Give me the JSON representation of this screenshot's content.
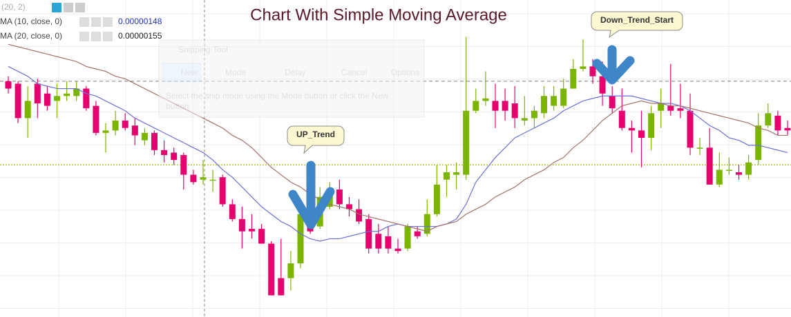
{
  "chart_data": {
    "type": "candlestick",
    "title": "Chart With Simple Moving Average",
    "indicator_header": "(20, 2)",
    "up_color": "#7cb500",
    "down_color": "#e6006e",
    "ylim": [
      8.12e-07,
      2.1e-06
    ],
    "hlines": [
      1.77e-06,
      1.43e-06
    ],
    "open": [
      1.77e-06,
      1.76e-06,
      1.62e-06,
      1.76e-06,
      1.72e-06,
      1.69e-06,
      1.71e-06,
      1.71e-06,
      1.74e-06,
      1.67e-06,
      1.56e-06,
      1.57e-06,
      1.61e-06,
      1.59e-06,
      1.53e-06,
      1.56e-06,
      1.49e-06,
      1.48e-06,
      1.47e-06,
      1.39e-06,
      1.37e-06,
      1.37e-06,
      1.38e-06,
      1.27e-06,
      1.21e-06,
      1.17e-06,
      1.17e-06,
      1.11e-06,
      9.7e-07,
      9.7e-07,
      1.03e-06,
      1.29e-06,
      1.18e-06,
      1.26e-06,
      1.33e-06,
      1.27e-06,
      1.25e-06,
      1.21e-06,
      1.15e-06,
      1.14e-06,
      1.09e-06,
      1.09e-06,
      1.16e-06,
      1.15e-06,
      1.23e-06,
      1.37e-06,
      1.39e-06,
      1.39e-06,
      1.65e-06,
      1.69e-06,
      1.69e-06,
      1.69e-06,
      1.68e-06,
      1.61e-06,
      1.62e-06,
      1.64e-06,
      1.67e-06,
      1.67e-06,
      1.74e-06,
      1.82e-06,
      1.83e-06,
      1.79e-06,
      1.71e-06,
      1.65e-06,
      1.58e-06,
      1.57e-06,
      1.54e-06,
      1.65e-06,
      1.67e-06,
      1.66e-06,
      1.65e-06,
      1.5e-06,
      1.5e-06,
      1.35e-06,
      1.41e-06,
      1.4e-06,
      1.39e-06,
      1.45e-06,
      1.59e-06,
      1.63e-06,
      1.58e-06
    ],
    "high": [
      1.79e-06,
      1.77e-06,
      1.75e-06,
      1.78e-06,
      1.75e-06,
      1.76e-06,
      1.77e-06,
      1.77e-06,
      1.75e-06,
      1.69e-06,
      1.6e-06,
      1.65e-06,
      1.64e-06,
      1.62e-06,
      1.58e-06,
      1.57e-06,
      1.53e-06,
      1.5e-06,
      1.48e-06,
      1.41e-06,
      1.45e-06,
      1.41e-06,
      1.39e-06,
      1.29e-06,
      1.26e-06,
      1.23e-06,
      1.19e-06,
      1.12e-06,
      1.13e-06,
      1.08e-06,
      1.27e-06,
      1.36e-06,
      1.34e-06,
      1.36e-06,
      1.37e-06,
      1.3e-06,
      1.29e-06,
      1.23e-06,
      1.19e-06,
      1.18e-06,
      1.13e-06,
      1.19e-06,
      1.18e-06,
      1.29e-06,
      1.43e-06,
      1.43e-06,
      1.44e-06,
      1.95e-06,
      1.74e-06,
      1.81e-06,
      1.76e-06,
      1.74e-06,
      1.75e-06,
      1.71e-06,
      1.67e-06,
      1.75e-06,
      1.75e-06,
      1.78e-06,
      1.86e-06,
      1.94e-06,
      1.86e-06,
      1.85e-06,
      1.75e-06,
      1.74e-06,
      1.61e-06,
      1.65e-06,
      1.67e-06,
      1.74e-06,
      1.84e-06,
      1.76e-06,
      1.72e-06,
      1.54e-06,
      1.58e-06,
      1.48e-06,
      1.46e-06,
      1.43e-06,
      1.47e-06,
      1.64e-06,
      1.68e-06,
      1.65e-06,
      1.61e-06
    ],
    "low": [
      1.72e-06,
      1.6e-06,
      1.54e-06,
      1.62e-06,
      1.65e-06,
      1.62e-06,
      1.69e-06,
      1.69e-06,
      1.65e-06,
      1.55e-06,
      1.48e-06,
      1.55e-06,
      1.57e-06,
      1.51e-06,
      1.51e-06,
      1.47e-06,
      1.44e-06,
      1.43e-06,
      1.33e-06,
      1.35e-06,
      1.35e-06,
      1.32e-06,
      1.26e-06,
      1.2e-06,
      1.09e-06,
      1.13e-06,
      1.11e-06,
      9e-07,
      9e-07,
      9.2e-07,
      1.01e-06,
      1.15e-06,
      1.17e-06,
      1.25e-06,
      1.25e-06,
      1.22e-06,
      1.19e-06,
      1.07e-06,
      1.07e-06,
      1.07e-06,
      1.07e-06,
      1.08e-06,
      1.13e-06,
      1.14e-06,
      1.22e-06,
      1.3e-06,
      1.33e-06,
      1.37e-06,
      1.64e-06,
      1.67e-06,
      1.58e-06,
      1.61e-06,
      1.58e-06,
      1.59e-06,
      1.58e-06,
      1.62e-06,
      1.65e-06,
      1.66e-06,
      1.74e-06,
      1.81e-06,
      1.76e-06,
      1.67e-06,
      1.64e-06,
      1.57e-06,
      1.48e-06,
      1.42e-06,
      1.49e-06,
      1.58e-06,
      1.63e-06,
      1.62e-06,
      1.47e-06,
      1.47e-06,
      1.35e-06,
      1.34e-06,
      1.39e-06,
      1.37e-06,
      1.37e-06,
      1.43e-06,
      1.58e-06,
      1.55e-06,
      1.55e-06
    ],
    "close": [
      1.74e-06,
      1.62e-06,
      1.69e-06,
      1.68e-06,
      1.67e-06,
      1.71e-06,
      1.72e-06,
      1.74e-06,
      1.66e-06,
      1.56e-06,
      1.57e-06,
      1.61e-06,
      1.58e-06,
      1.55e-06,
      1.56e-06,
      1.49e-06,
      1.47e-06,
      1.45e-06,
      1.39e-06,
      1.36e-06,
      1.38e-06,
      1.37e-06,
      1.27e-06,
      1.21e-06,
      1.16e-06,
      1.16e-06,
      1.11e-06,
      9e-07,
      9e-07,
      1.03e-06,
      1.23e-06,
      1.16e-06,
      1.3e-06,
      1.33e-06,
      1.27e-06,
      1.25e-06,
      1.2e-06,
      1.09e-06,
      1.09e-06,
      1.09e-06,
      1.08e-06,
      1.18e-06,
      1.14e-06,
      1.23e-06,
      1.35e-06,
      1.4e-06,
      1.4e-06,
      1.65e-06,
      1.69e-06,
      1.7e-06,
      1.65e-06,
      1.65e-06,
      1.62e-06,
      1.62e-06,
      1.65e-06,
      1.71e-06,
      1.71e-06,
      1.74e-06,
      1.82e-06,
      1.83e-06,
      1.79e-06,
      1.72e-06,
      1.66e-06,
      1.58e-06,
      1.57e-06,
      1.54e-06,
      1.64e-06,
      1.68e-06,
      1.65e-06,
      1.65e-06,
      1.5e-06,
      1.5e-06,
      1.35e-06,
      1.41e-06,
      1.41e-06,
      1.39e-06,
      1.44e-06,
      1.59e-06,
      1.64e-06,
      1.57e-06,
      1.57e-06
    ],
    "series": [
      {
        "name": "MA (10, close, 0)",
        "legend_value": "0.00000148",
        "color": "#6b6fd8",
        "values": [
          1.83e-06,
          1.81e-06,
          1.79e-06,
          1.76e-06,
          1.75e-06,
          1.74e-06,
          1.74e-06,
          1.74e-06,
          1.72e-06,
          1.71e-06,
          1.69e-06,
          1.67e-06,
          1.65e-06,
          1.62e-06,
          1.6e-06,
          1.58e-06,
          1.56e-06,
          1.54e-06,
          1.52e-06,
          1.5e-06,
          1.48e-06,
          1.45e-06,
          1.41e-06,
          1.38e-06,
          1.34e-06,
          1.3e-06,
          1.26e-06,
          1.23e-06,
          1.2e-06,
          1.18e-06,
          1.15e-06,
          1.13e-06,
          1.12e-06,
          1.13e-06,
          1.13e-06,
          1.14e-06,
          1.15e-06,
          1.16e-06,
          1.16e-06,
          1.18e-06,
          1.19e-06,
          1.18e-06,
          1.18e-06,
          1.18e-06,
          1.18e-06,
          1.19e-06,
          1.21e-06,
          1.27e-06,
          1.36e-06,
          1.41e-06,
          1.46e-06,
          1.5e-06,
          1.54e-06,
          1.56e-06,
          1.58e-06,
          1.6e-06,
          1.62e-06,
          1.65e-06,
          1.67e-06,
          1.69e-06,
          1.7e-06,
          1.71e-06,
          1.71e-06,
          1.71e-06,
          1.71e-06,
          1.7e-06,
          1.69e-06,
          1.68e-06,
          1.68e-06,
          1.67e-06,
          1.65e-06,
          1.62e-06,
          1.59e-06,
          1.57e-06,
          1.54e-06,
          1.53e-06,
          1.51e-06,
          1.51e-06,
          1.5e-06,
          1.49e-06,
          1.48e-06
        ]
      },
      {
        "name": "MA (20, close, 0)",
        "legend_value": "0.00000155",
        "color": "#a2726c",
        "values": [
          1.92e-06,
          1.91e-06,
          1.9e-06,
          1.89e-06,
          1.88e-06,
          1.87e-06,
          1.86e-06,
          1.85e-06,
          1.83e-06,
          1.82e-06,
          1.81e-06,
          1.79e-06,
          1.78e-06,
          1.76e-06,
          1.74e-06,
          1.72e-06,
          1.7e-06,
          1.68e-06,
          1.66e-06,
          1.64e-06,
          1.62e-06,
          1.6e-06,
          1.58e-06,
          1.55e-06,
          1.53e-06,
          1.5e-06,
          1.46e-06,
          1.42e-06,
          1.39e-06,
          1.36e-06,
          1.34e-06,
          1.31e-06,
          1.29e-06,
          1.27e-06,
          1.26e-06,
          1.25e-06,
          1.23e-06,
          1.22e-06,
          1.21e-06,
          1.2e-06,
          1.19e-06,
          1.18e-06,
          1.17e-06,
          1.16e-06,
          1.18e-06,
          1.19e-06,
          1.2e-06,
          1.23e-06,
          1.25e-06,
          1.27e-06,
          1.3e-06,
          1.32e-06,
          1.34e-06,
          1.37e-06,
          1.39e-06,
          1.41e-06,
          1.44e-06,
          1.46e-06,
          1.5e-06,
          1.53e-06,
          1.57e-06,
          1.61e-06,
          1.64e-06,
          1.67e-06,
          1.68e-06,
          1.69e-06,
          1.68e-06,
          1.68e-06,
          1.67e-06,
          1.67e-06,
          1.66e-06,
          1.65e-06,
          1.64e-06,
          1.63e-06,
          1.62e-06,
          1.61e-06,
          1.6e-06,
          1.58e-06,
          1.57e-06,
          1.55e-06,
          1.55e-06
        ]
      }
    ],
    "annotations": [
      "UP_Trend",
      "Down_Trend_Start"
    ]
  },
  "overlay": {
    "title": "Snipping Tool",
    "buttons": [
      "New",
      "Mode",
      "Delay",
      "Cancel",
      "Options"
    ],
    "text": [
      "Select the snip mode using the Mode button or click the New",
      "button."
    ]
  }
}
